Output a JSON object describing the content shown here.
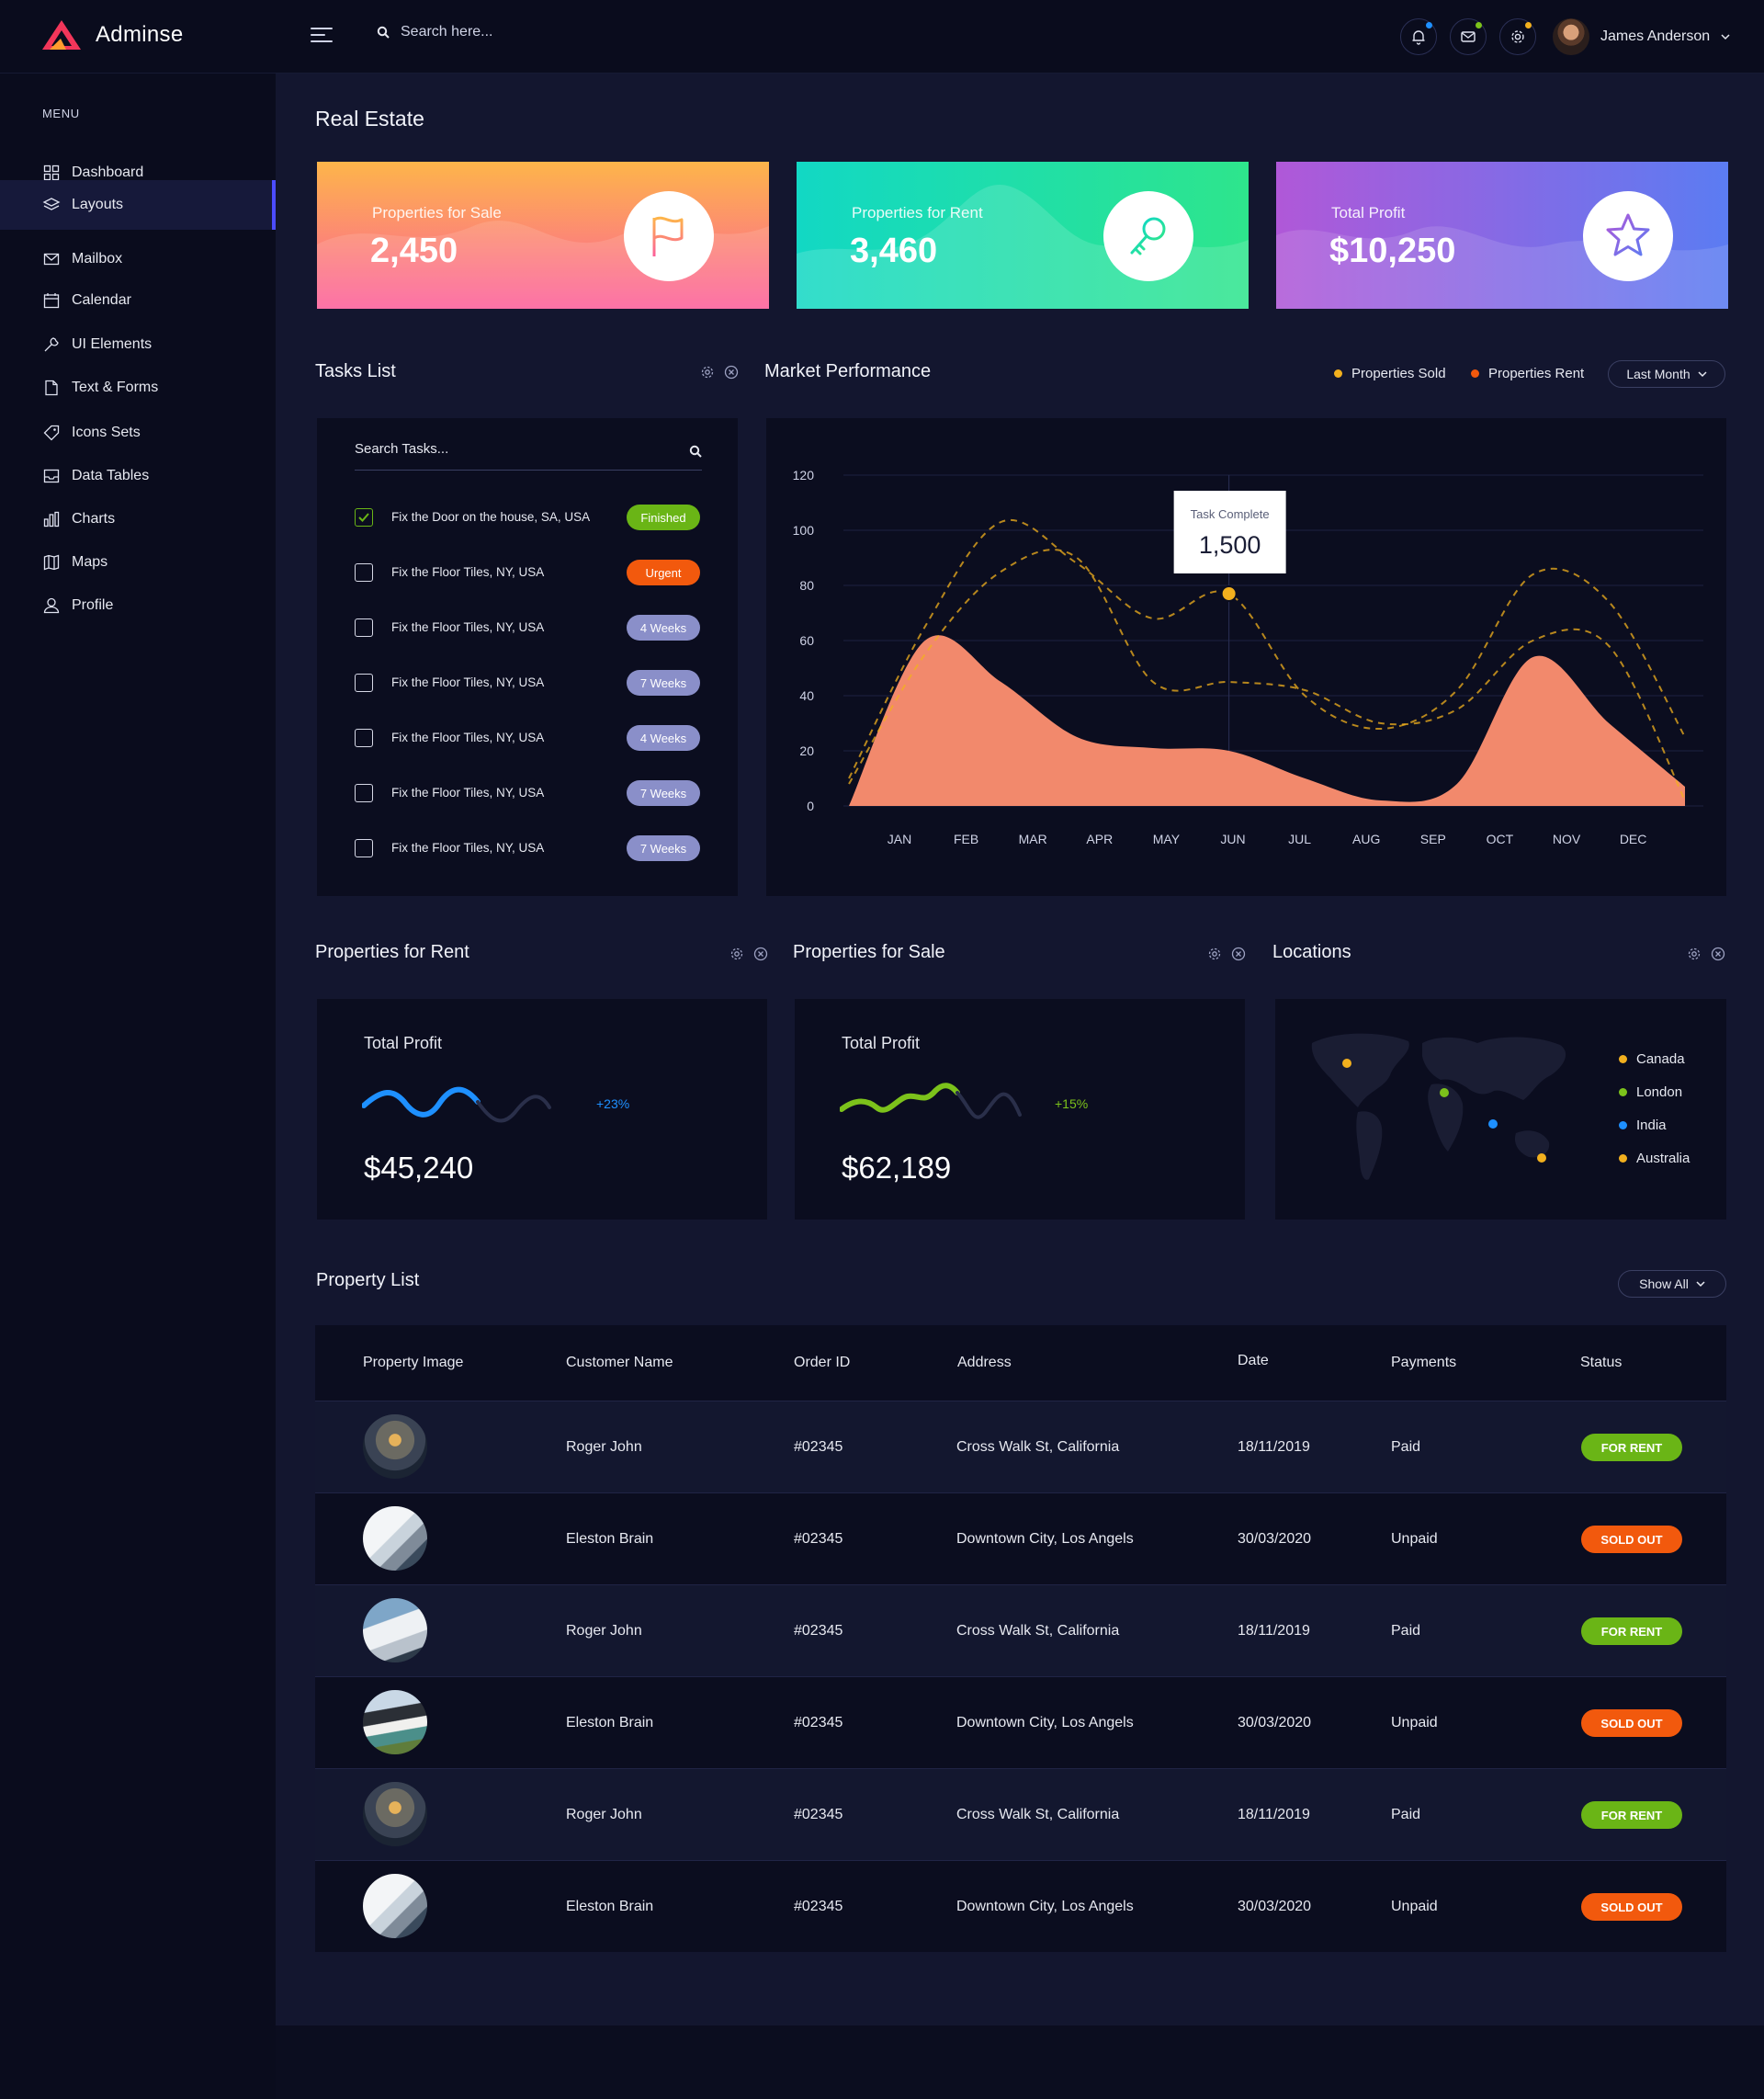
{
  "brand": {
    "name": "Adminse",
    "logo_icon": "triangle-logo-icon"
  },
  "topbar": {
    "search_placeholder": "Search here...",
    "icons": [
      "bell-icon",
      "mail-icon",
      "gear-icon"
    ],
    "user_name": "James Anderson"
  },
  "sidebar": {
    "menu_title": "MENU",
    "items": [
      {
        "label": "Dashboard",
        "icon": "grid-icon"
      },
      {
        "label": "Layouts",
        "icon": "layers-icon",
        "active": true
      },
      {
        "label": "Mailbox",
        "icon": "mail-icon"
      },
      {
        "label": "Calendar",
        "icon": "calendar-icon"
      },
      {
        "label": "UI Elements",
        "icon": "wrench-icon"
      },
      {
        "label": "Text & Forms",
        "icon": "document-icon"
      },
      {
        "label": "Icons Sets",
        "icon": "tag-icon"
      },
      {
        "label": "Data Tables",
        "icon": "inbox-icon"
      },
      {
        "label": "Charts",
        "icon": "bar-chart-icon"
      },
      {
        "label": "Maps",
        "icon": "map-icon"
      },
      {
        "label": "Profile",
        "icon": "user-icon"
      }
    ]
  },
  "page": {
    "title": "Real Estate"
  },
  "stats": [
    {
      "label": "Properties for Sale",
      "value": "2,450",
      "icon": "flag-icon",
      "colors": [
        "#fdb54a",
        "#fc5f9b"
      ]
    },
    {
      "label": "Properties for Rent",
      "value": "3,460",
      "icon": "key-icon",
      "colors": [
        "#12d8c4",
        "#2ee58c"
      ]
    },
    {
      "label": "Total Profit",
      "value": "$10,250",
      "icon": "star-icon",
      "colors": [
        "#b058d8",
        "#5b7cf2"
      ]
    }
  ],
  "tasks": {
    "title": "Tasks List",
    "search_placeholder": "Search Tasks...",
    "items": [
      {
        "text": "Fix the Door on the house, SA, USA",
        "tag": "Finished",
        "tag_color": "#6ab516",
        "checked": true
      },
      {
        "text": "Fix the Floor Tiles, NY, USA",
        "tag": "Urgent",
        "tag_color": "#f2590d",
        "checked": false
      },
      {
        "text": "Fix the Floor Tiles, NY, USA",
        "tag": "4 Weeks",
        "tag_color": "#8a8fc9",
        "checked": false
      },
      {
        "text": "Fix the Floor Tiles, NY, USA",
        "tag": "7 Weeks",
        "tag_color": "#8a8fc9",
        "checked": false
      },
      {
        "text": "Fix the Floor Tiles, NY, USA",
        "tag": "4 Weeks",
        "tag_color": "#8a8fc9",
        "checked": false
      },
      {
        "text": "Fix the Floor Tiles, NY, USA",
        "tag": "7 Weeks",
        "tag_color": "#8a8fc9",
        "checked": false
      },
      {
        "text": "Fix the Floor Tiles, NY, USA",
        "tag": "7 Weeks",
        "tag_color": "#8a8fc9",
        "checked": false
      }
    ]
  },
  "market": {
    "title": "Market Performance",
    "legend": [
      {
        "label": "Properties Sold",
        "color": "#f2b01e"
      },
      {
        "label": "Properties Rent",
        "color": "#f2590d"
      }
    ],
    "filter_label": "Last Month",
    "tooltip": {
      "label": "Task Complete",
      "value": "1,500"
    }
  },
  "chart_data": {
    "type": "area",
    "categories": [
      "JAN",
      "FEB",
      "MAR",
      "APR",
      "MAY",
      "JUN",
      "JUL",
      "AUG",
      "SEP",
      "OCT",
      "NOV",
      "DEC"
    ],
    "y_ticks": [
      0,
      20,
      40,
      60,
      80,
      100,
      120
    ],
    "ylim": [
      0,
      120
    ],
    "series": [
      {
        "kind": "area",
        "color": "#f2896c",
        "values": [
          0,
          60,
          45,
          25,
          21,
          20,
          10,
          2,
          8,
          54,
          30,
          7
        ]
      },
      {
        "kind": "dashed",
        "color": "#f2b01e",
        "values": [
          10,
          65,
          103,
          88,
          68,
          77,
          40,
          28,
          42,
          84,
          74,
          25
        ]
      },
      {
        "kind": "dashed",
        "color": "#f2b01e",
        "values": [
          8,
          55,
          85,
          90,
          45,
          45,
          42,
          30,
          35,
          60,
          58,
          2
        ]
      }
    ],
    "highlight": {
      "category": "JUN",
      "value": 77
    }
  },
  "rent": {
    "title": "Properties for Rent",
    "label": "Total Profit",
    "value": "$45,240",
    "change": "+23%",
    "color": "#1e90ff"
  },
  "sale": {
    "title": "Properties for Sale",
    "label": "Total Profit",
    "value": "$62,189",
    "change": "+15%",
    "color": "#7cc21b"
  },
  "locations": {
    "title": "Locations",
    "items": [
      {
        "label": "Canada",
        "color": "#f2b01e"
      },
      {
        "label": "London",
        "color": "#7cc21b"
      },
      {
        "label": "India",
        "color": "#1e90ff"
      },
      {
        "label": "Australia",
        "color": "#f2b01e"
      }
    ]
  },
  "property_list": {
    "title": "Property List",
    "show_all": "Show All",
    "headers": [
      "Property Image",
      "Customer Name",
      "Order ID",
      "Address",
      "Date",
      "Payments",
      "Status"
    ],
    "rows": [
      {
        "customer": "Roger John",
        "order": "#02345",
        "address": "Cross Walk St, California",
        "date": "18/11/2019",
        "payment": "Paid",
        "status": "FOR RENT",
        "status_color": "#6ab516"
      },
      {
        "customer": "Eleston Brain",
        "order": "#02345",
        "address": "Downtown City, Los Angels",
        "date": "30/03/2020",
        "payment": "Unpaid",
        "status": "SOLD OUT",
        "status_color": "#f2590d"
      },
      {
        "customer": "Roger John",
        "order": "#02345",
        "address": "Cross Walk St, California",
        "date": "18/11/2019",
        "payment": "Paid",
        "status": "FOR RENT",
        "status_color": "#6ab516"
      },
      {
        "customer": "Eleston Brain",
        "order": "#02345",
        "address": "Downtown City, Los Angels",
        "date": "30/03/2020",
        "payment": "Unpaid",
        "status": "SOLD OUT",
        "status_color": "#f2590d"
      },
      {
        "customer": "Roger John",
        "order": "#02345",
        "address": "Cross Walk St, California",
        "date": "18/11/2019",
        "payment": "Paid",
        "status": "FOR RENT",
        "status_color": "#6ab516"
      },
      {
        "customer": "Eleston Brain",
        "order": "#02345",
        "address": "Downtown City, Los Angels",
        "date": "30/03/2020",
        "payment": "Unpaid",
        "status": "SOLD OUT",
        "status_color": "#f2590d"
      }
    ]
  }
}
